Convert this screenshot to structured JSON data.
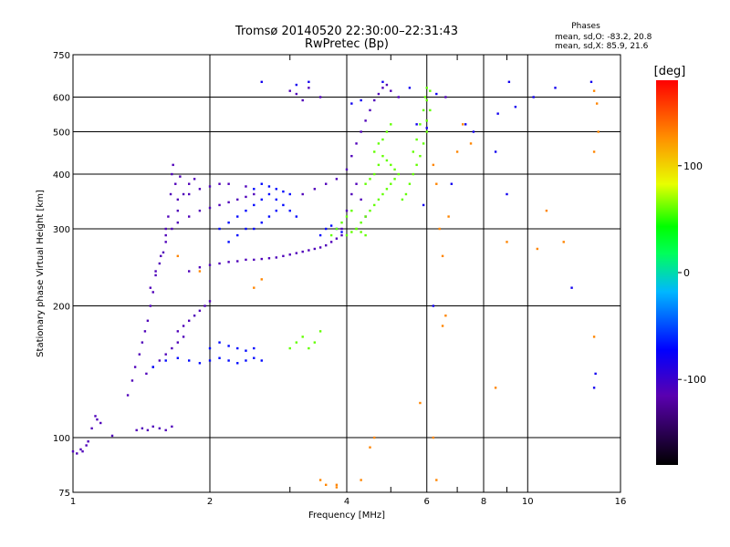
{
  "chart_data": {
    "type": "scatter",
    "title": "Tromsø 20140520 22:30:00–22:31:43",
    "subtitle": "RwPretec (Bp)",
    "xlabel": "Frequency [MHz]",
    "ylabel": "Stationary phase Virtual Height [km]",
    "x_scale": "log",
    "y_scale": "log",
    "xlim": [
      1,
      16
    ],
    "ylim": [
      75,
      750
    ],
    "x_ticks": [
      1,
      2,
      4,
      6,
      8,
      10,
      16
    ],
    "x_tick_labels": [
      "1",
      "2",
      "4",
      "6",
      "8",
      "10",
      "16"
    ],
    "x_minor_ticks": [
      3,
      5,
      7,
      9
    ],
    "y_ticks": [
      75,
      100,
      200,
      300,
      400,
      500,
      600,
      750
    ],
    "y_tick_labels": [
      "75",
      "100",
      "200",
      "300",
      "400",
      "500",
      "600",
      "750"
    ],
    "grid": true,
    "stats": {
      "heading": "Phases",
      "line1": "mean, sd,O: -83.2, 20.8",
      "line2": "mean, sd,X:  85.9, 21.6"
    },
    "colorbar": {
      "label": "[deg]",
      "min": -180,
      "max": 180,
      "ticks": [
        100,
        0,
        -100
      ],
      "tick_labels": [
        "100",
        "0",
        "-100"
      ]
    },
    "series": [
      {
        "points": [
          [
            1.0,
            93
          ],
          [
            1.02,
            92
          ],
          [
            1.04,
            94
          ],
          [
            1.05,
            93
          ],
          [
            1.07,
            96
          ],
          [
            1.08,
            98
          ],
          [
            1.1,
            105
          ],
          [
            1.12,
            112
          ],
          [
            1.13,
            110
          ],
          [
            1.15,
            108
          ],
          [
            1.22,
            101
          ],
          [
            1.38,
            104
          ],
          [
            1.42,
            105
          ],
          [
            1.46,
            104
          ],
          [
            1.5,
            106
          ],
          [
            1.55,
            105
          ],
          [
            1.6,
            104
          ],
          [
            1.65,
            106
          ],
          [
            1.32,
            125
          ],
          [
            1.35,
            135
          ],
          [
            1.37,
            145
          ],
          [
            1.4,
            155
          ],
          [
            1.42,
            165
          ],
          [
            1.44,
            175
          ],
          [
            1.46,
            185
          ],
          [
            1.48,
            200
          ],
          [
            1.5,
            215
          ],
          [
            1.52,
            235
          ],
          [
            1.55,
            250
          ],
          [
            1.58,
            265
          ],
          [
            1.6,
            290
          ],
          [
            1.62,
            320
          ],
          [
            1.64,
            360
          ],
          [
            1.65,
            400
          ],
          [
            1.66,
            420
          ],
          [
            1.45,
            140
          ],
          [
            1.5,
            145
          ],
          [
            1.55,
            150
          ],
          [
            1.6,
            155
          ],
          [
            1.65,
            160
          ],
          [
            1.7,
            165
          ],
          [
            1.75,
            170
          ],
          [
            1.48,
            220
          ],
          [
            1.52,
            240
          ],
          [
            1.56,
            260
          ],
          [
            1.6,
            280
          ],
          [
            1.65,
            300
          ],
          [
            1.7,
            330
          ],
          [
            1.75,
            360
          ],
          [
            1.8,
            380
          ],
          [
            1.85,
            390
          ],
          [
            1.7,
            175
          ],
          [
            1.75,
            180
          ],
          [
            1.8,
            185
          ],
          [
            1.85,
            190
          ],
          [
            1.9,
            195
          ],
          [
            1.95,
            200
          ],
          [
            2.0,
            205
          ],
          [
            1.8,
            240
          ],
          [
            1.9,
            245
          ],
          [
            2.0,
            248
          ],
          [
            2.1,
            250
          ],
          [
            2.2,
            252
          ],
          [
            2.3,
            253
          ],
          [
            2.4,
            255
          ],
          [
            2.5,
            255
          ],
          [
            2.6,
            256
          ],
          [
            2.7,
            257
          ],
          [
            2.8,
            258
          ],
          [
            2.9,
            260
          ],
          [
            3.0,
            262
          ],
          [
            3.1,
            264
          ],
          [
            3.2,
            266
          ],
          [
            3.3,
            268
          ],
          [
            3.4,
            270
          ],
          [
            3.5,
            272
          ],
          [
            3.6,
            275
          ],
          [
            3.7,
            280
          ],
          [
            3.8,
            285
          ],
          [
            3.9,
            290
          ],
          [
            1.6,
            300
          ],
          [
            1.7,
            310
          ],
          [
            1.8,
            320
          ],
          [
            1.9,
            330
          ],
          [
            2.0,
            335
          ],
          [
            2.1,
            340
          ],
          [
            2.2,
            345
          ],
          [
            2.3,
            350
          ],
          [
            2.4,
            355
          ],
          [
            2.5,
            360
          ],
          [
            1.7,
            350
          ],
          [
            1.8,
            360
          ],
          [
            1.9,
            370
          ],
          [
            2.0,
            375
          ],
          [
            2.1,
            380
          ],
          [
            2.2,
            380
          ],
          [
            2.4,
            375
          ],
          [
            3.2,
            360
          ],
          [
            3.4,
            370
          ],
          [
            3.6,
            380
          ],
          [
            3.8,
            390
          ],
          [
            4.0,
            410
          ],
          [
            4.1,
            440
          ],
          [
            4.2,
            470
          ],
          [
            4.3,
            500
          ],
          [
            4.4,
            530
          ],
          [
            4.5,
            560
          ],
          [
            4.6,
            590
          ],
          [
            4.7,
            610
          ],
          [
            4.8,
            630
          ],
          [
            3.9,
            300
          ],
          [
            4.0,
            330
          ],
          [
            4.1,
            360
          ],
          [
            4.2,
            380
          ],
          [
            4.3,
            350
          ],
          [
            4.4,
            320
          ],
          [
            3.0,
            620
          ],
          [
            3.1,
            610
          ],
          [
            3.2,
            590
          ],
          [
            3.3,
            630
          ],
          [
            3.5,
            600
          ],
          [
            4.9,
            640
          ],
          [
            5.0,
            620
          ],
          [
            5.2,
            600
          ],
          [
            6.6,
            600
          ],
          [
            1.68,
            380
          ],
          [
            1.72,
            395
          ]
        ]
      },
      {
        "points": [
          [
            1.5,
            145
          ],
          [
            1.6,
            150
          ],
          [
            1.7,
            152
          ],
          [
            1.8,
            150
          ],
          [
            1.9,
            148
          ],
          [
            2.0,
            150
          ],
          [
            2.1,
            152
          ],
          [
            2.2,
            150
          ],
          [
            2.3,
            148
          ],
          [
            2.4,
            150
          ],
          [
            2.5,
            152
          ],
          [
            2.6,
            150
          ],
          [
            2.0,
            160
          ],
          [
            2.1,
            165
          ],
          [
            2.2,
            162
          ],
          [
            2.3,
            160
          ],
          [
            2.4,
            158
          ],
          [
            2.5,
            160
          ],
          [
            2.1,
            300
          ],
          [
            2.2,
            310
          ],
          [
            2.3,
            320
          ],
          [
            2.4,
            330
          ],
          [
            2.5,
            340
          ],
          [
            2.6,
            350
          ],
          [
            2.7,
            360
          ],
          [
            2.8,
            350
          ],
          [
            2.9,
            340
          ],
          [
            3.0,
            330
          ],
          [
            3.1,
            320
          ],
          [
            2.2,
            280
          ],
          [
            2.3,
            290
          ],
          [
            2.4,
            300
          ],
          [
            2.5,
            300
          ],
          [
            2.6,
            310
          ],
          [
            2.7,
            320
          ],
          [
            2.8,
            330
          ],
          [
            2.5,
            370
          ],
          [
            2.6,
            380
          ],
          [
            2.7,
            375
          ],
          [
            2.8,
            370
          ],
          [
            2.9,
            365
          ],
          [
            3.0,
            360
          ],
          [
            3.5,
            290
          ],
          [
            3.6,
            300
          ],
          [
            3.7,
            305
          ],
          [
            3.8,
            300
          ],
          [
            3.9,
            295
          ]
        ]
      },
      {
        "points": [
          [
            3.0,
            160
          ],
          [
            3.1,
            165
          ],
          [
            3.2,
            170
          ],
          [
            3.3,
            160
          ],
          [
            3.4,
            165
          ],
          [
            3.5,
            175
          ],
          [
            3.7,
            290
          ],
          [
            3.8,
            300
          ],
          [
            3.9,
            310
          ],
          [
            4.0,
            320
          ],
          [
            4.1,
            330
          ],
          [
            4.4,
            380
          ],
          [
            4.5,
            390
          ],
          [
            4.6,
            400
          ],
          [
            4.7,
            420
          ],
          [
            4.8,
            440
          ],
          [
            4.9,
            430
          ],
          [
            5.0,
            420
          ],
          [
            5.1,
            410
          ],
          [
            5.2,
            400
          ],
          [
            4.2,
            300
          ],
          [
            4.3,
            310
          ],
          [
            4.4,
            320
          ],
          [
            4.5,
            330
          ],
          [
            4.6,
            340
          ],
          [
            4.7,
            350
          ],
          [
            4.8,
            360
          ],
          [
            4.9,
            370
          ],
          [
            5.0,
            380
          ],
          [
            5.1,
            390
          ],
          [
            5.3,
            350
          ],
          [
            5.4,
            360
          ],
          [
            5.5,
            380
          ],
          [
            5.6,
            400
          ],
          [
            5.7,
            420
          ],
          [
            5.8,
            440
          ],
          [
            5.9,
            470
          ],
          [
            6.0,
            500
          ],
          [
            6.0,
            530
          ],
          [
            6.1,
            560
          ],
          [
            6.0,
            590
          ],
          [
            6.1,
            620
          ],
          [
            4.6,
            450
          ],
          [
            4.7,
            470
          ],
          [
            4.8,
            480
          ],
          [
            4.9,
            500
          ],
          [
            5.0,
            520
          ],
          [
            5.6,
            450
          ],
          [
            5.7,
            480
          ],
          [
            5.8,
            520
          ],
          [
            5.9,
            560
          ],
          [
            5.95,
            600
          ],
          [
            6.0,
            630
          ],
          [
            4.0,
            290
          ],
          [
            4.1,
            295
          ],
          [
            4.2,
            300
          ],
          [
            4.3,
            295
          ],
          [
            4.4,
            290
          ]
        ]
      },
      {
        "points": [
          [
            3.5,
            80
          ],
          [
            3.6,
            78
          ],
          [
            3.8,
            77
          ],
          [
            4.5,
            95
          ],
          [
            4.6,
            100
          ],
          [
            6.2,
            420
          ],
          [
            6.3,
            380
          ],
          [
            6.5,
            180
          ],
          [
            6.6,
            190
          ],
          [
            6.4,
            300
          ],
          [
            6.5,
            260
          ],
          [
            6.7,
            320
          ],
          [
            7.0,
            450
          ],
          [
            7.5,
            470
          ],
          [
            8.5,
            130
          ],
          [
            9.0,
            280
          ],
          [
            10.5,
            270
          ],
          [
            11.0,
            330
          ],
          [
            12.0,
            280
          ],
          [
            14.0,
            620
          ],
          [
            14.2,
            580
          ],
          [
            14.0,
            450
          ],
          [
            14.3,
            500
          ],
          [
            14.0,
            170
          ],
          [
            6.2,
            100
          ],
          [
            6.3,
            80
          ],
          [
            5.8,
            120
          ],
          [
            4.3,
            80
          ],
          [
            3.8,
            78
          ],
          [
            7.2,
            520
          ],
          [
            2.5,
            220
          ],
          [
            1.9,
            240
          ],
          [
            1.7,
            260
          ],
          [
            2.6,
            230
          ]
        ]
      },
      {
        "points": [
          [
            2.6,
            650
          ],
          [
            3.1,
            640
          ],
          [
            3.3,
            650
          ],
          [
            4.8,
            650
          ],
          [
            5.5,
            630
          ],
          [
            6.3,
            610
          ],
          [
            7.3,
            520
          ],
          [
            7.6,
            500
          ],
          [
            8.6,
            550
          ],
          [
            9.1,
            650
          ],
          [
            9.4,
            570
          ],
          [
            10.3,
            600
          ],
          [
            11.5,
            630
          ],
          [
            13.8,
            650
          ],
          [
            14.0,
            130
          ],
          [
            14.1,
            140
          ],
          [
            12.5,
            220
          ],
          [
            6.0,
            510
          ],
          [
            5.7,
            520
          ],
          [
            6.8,
            380
          ],
          [
            6.2,
            200
          ],
          [
            5.9,
            340
          ],
          [
            9.0,
            360
          ],
          [
            8.5,
            450
          ],
          [
            4.1,
            580
          ],
          [
            4.3,
            590
          ]
        ]
      }
    ]
  }
}
